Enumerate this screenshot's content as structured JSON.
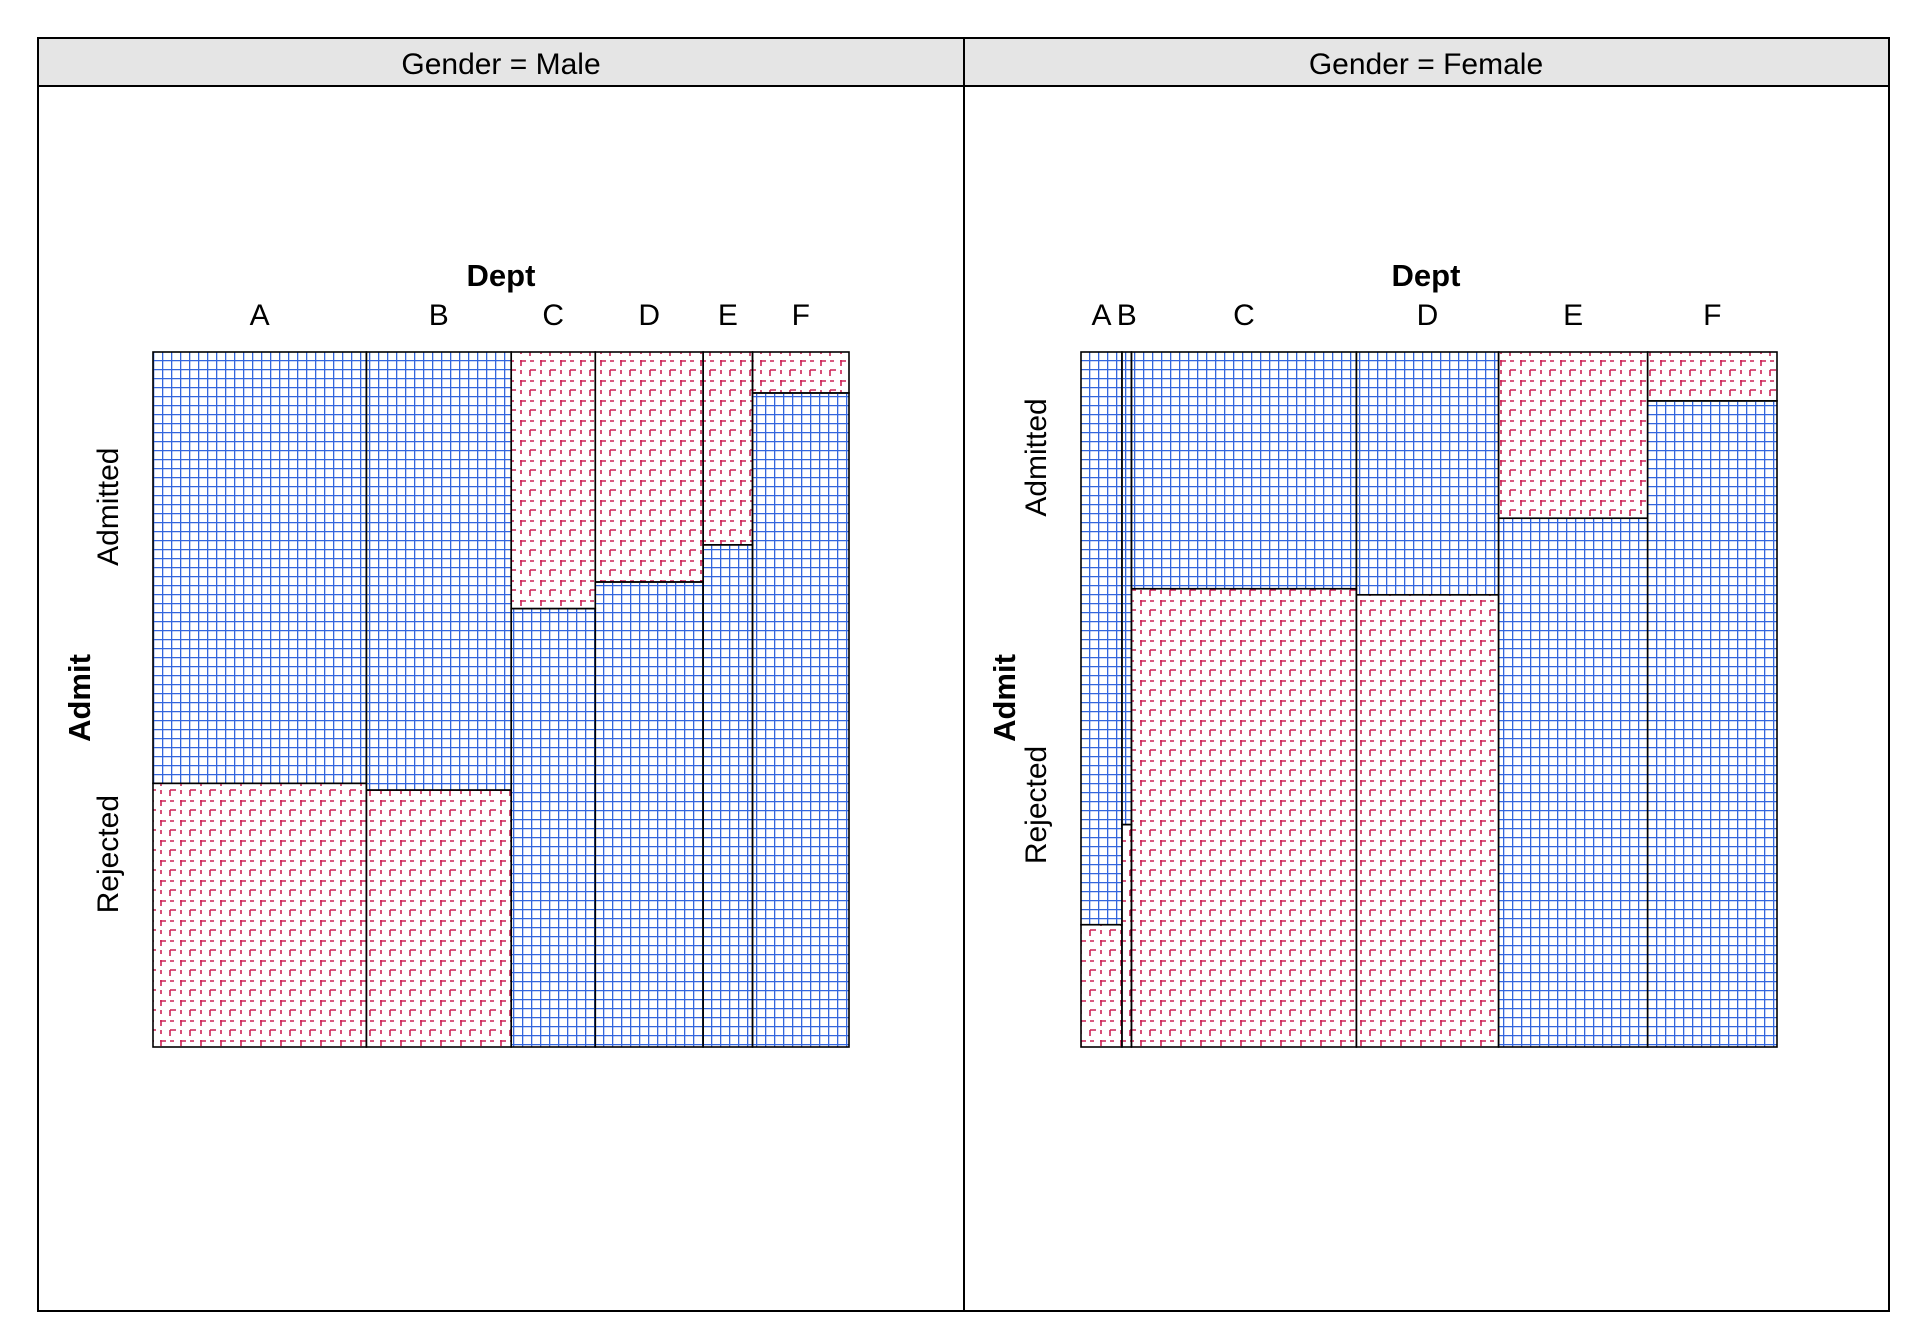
{
  "chart_data": [
    {
      "type": "mosaic",
      "panel_label": "Gender = Male",
      "x_title": "Dept",
      "y_title": "Admit",
      "departments": [
        "A",
        "B",
        "C",
        "D",
        "E",
        "F"
      ],
      "admit_levels": [
        "Admitted",
        "Rejected"
      ],
      "counts": {
        "Admitted": [
          512,
          353,
          120,
          138,
          53,
          22
        ],
        "Rejected": [
          313,
          207,
          205,
          279,
          138,
          351
        ]
      },
      "residual_shading": {
        "Admitted": [
          "positive",
          "positive",
          "negative",
          "negative",
          "negative",
          "negative"
        ],
        "Rejected": [
          "negative",
          "negative",
          "positive",
          "positive",
          "positive",
          "positive"
        ]
      }
    },
    {
      "type": "mosaic",
      "panel_label": "Gender = Female",
      "x_title": "Dept",
      "y_title": "Admit",
      "departments": [
        "A",
        "B",
        "C",
        "D",
        "E",
        "F"
      ],
      "admit_levels": [
        "Admitted",
        "Rejected"
      ],
      "counts": {
        "Admitted": [
          89,
          17,
          202,
          131,
          94,
          24
        ],
        "Rejected": [
          19,
          8,
          391,
          244,
          299,
          317
        ]
      },
      "residual_shading": {
        "Admitted": [
          "positive",
          "positive",
          "positive",
          "positive",
          "negative",
          "negative"
        ],
        "Rejected": [
          "negative",
          "negative",
          "negative",
          "negative",
          "positive",
          "positive"
        ]
      }
    }
  ],
  "colors": {
    "positive": "#3366dd",
    "negative": "#cc2255",
    "border": "#000000",
    "strip_background": "#e5e5e5"
  }
}
